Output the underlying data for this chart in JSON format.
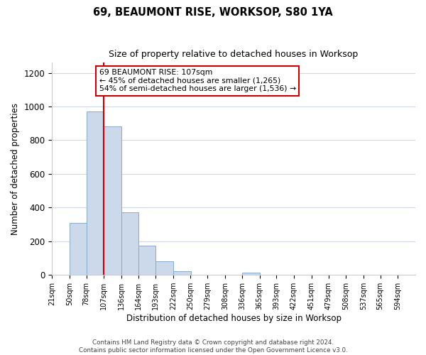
{
  "title": "69, BEAUMONT RISE, WORKSOP, S80 1YA",
  "subtitle": "Size of property relative to detached houses in Worksop",
  "xlabel": "Distribution of detached houses by size in Worksop",
  "ylabel": "Number of detached properties",
  "bar_color": "#ccd9ea",
  "bar_edge_color": "#8aaac8",
  "bin_labels": [
    "21sqm",
    "50sqm",
    "78sqm",
    "107sqm",
    "136sqm",
    "164sqm",
    "193sqm",
    "222sqm",
    "250sqm",
    "279sqm",
    "308sqm",
    "336sqm",
    "365sqm",
    "393sqm",
    "422sqm",
    "451sqm",
    "479sqm",
    "508sqm",
    "537sqm",
    "565sqm",
    "594sqm"
  ],
  "bin_edges": [
    21,
    50,
    78,
    107,
    136,
    164,
    193,
    222,
    250,
    279,
    308,
    336,
    365,
    393,
    422,
    451,
    479,
    508,
    537,
    565,
    594
  ],
  "bar_heights": [
    0,
    310,
    970,
    880,
    370,
    175,
    80,
    20,
    0,
    0,
    0,
    14,
    0,
    0,
    0,
    0,
    0,
    0,
    0,
    0,
    0
  ],
  "vline_x": 107,
  "vline_color": "#cc0000",
  "annotation_title": "69 BEAUMONT RISE: 107sqm",
  "annotation_line1": "← 45% of detached houses are smaller (1,265)",
  "annotation_line2": "54% of semi-detached houses are larger (1,536) →",
  "annotation_box_color": "#ffffff",
  "annotation_box_edge": "#cc0000",
  "ylim": [
    0,
    1260
  ],
  "yticks": [
    0,
    200,
    400,
    600,
    800,
    1000,
    1200
  ],
  "footer_line1": "Contains HM Land Registry data © Crown copyright and database right 2024.",
  "footer_line2": "Contains public sector information licensed under the Open Government Licence v3.0.",
  "grid_color": "#d0d8e8",
  "background_color": "#ffffff"
}
